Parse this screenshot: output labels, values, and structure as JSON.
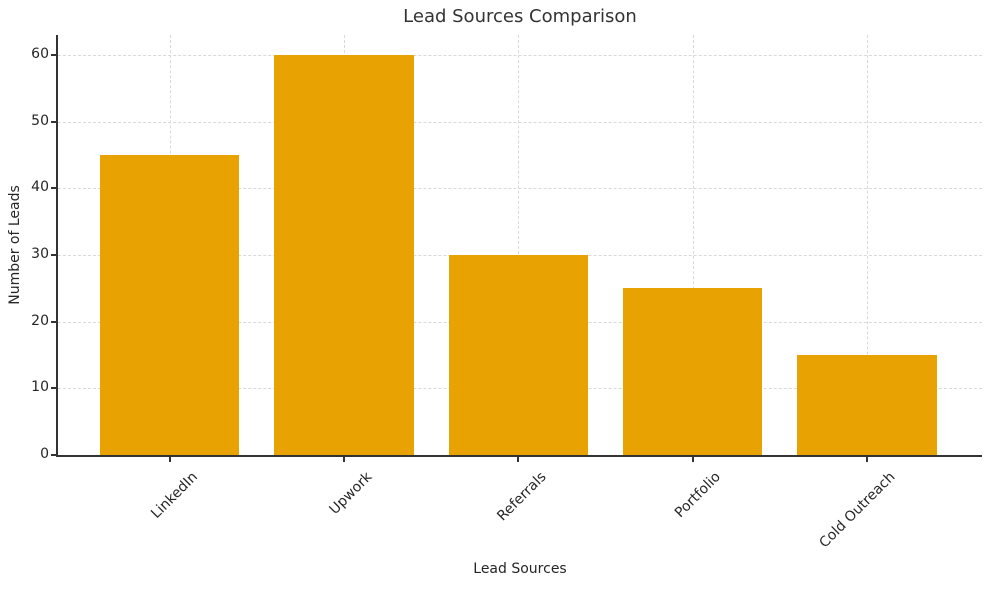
{
  "chart_data": {
    "type": "bar",
    "title": "Lead Sources Comparison",
    "xlabel": "Lead Sources",
    "ylabel": "Number of Leads",
    "categories": [
      "LinkedIn",
      "Upwork",
      "Referrals",
      "Portfolio",
      "Cold Outreach"
    ],
    "values": [
      45,
      60,
      30,
      25,
      15
    ],
    "yticks": [
      0,
      10,
      20,
      30,
      40,
      50,
      60
    ],
    "ylim": [
      0,
      63
    ],
    "xlim": [
      -0.64,
      4.66
    ],
    "bar_width": 0.8,
    "grid": true,
    "legend": "none",
    "colors": {
      "bar": "#E8A202",
      "grid": "#d9d9d9",
      "axis": "#333333",
      "text": "#262626",
      "title": "#333333",
      "background": "#ffffff"
    }
  }
}
